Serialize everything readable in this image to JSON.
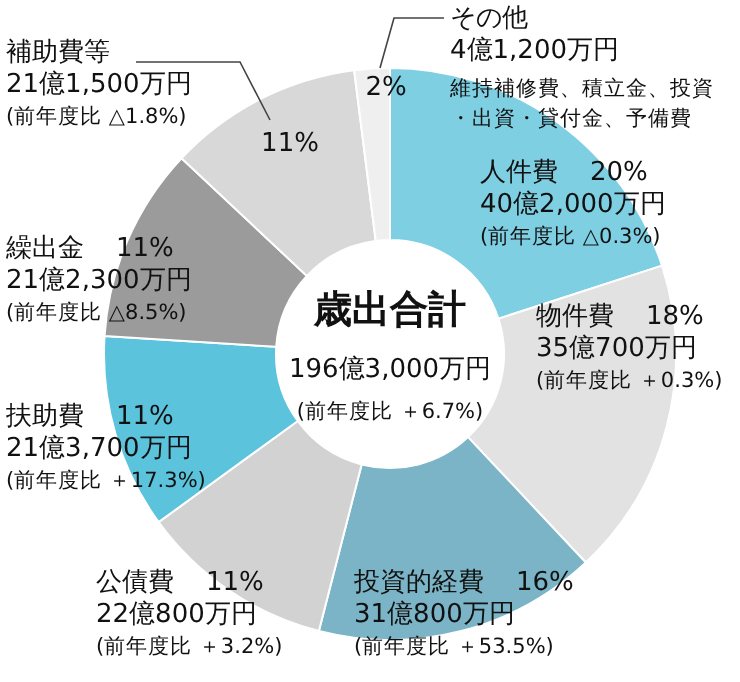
{
  "chart_data": {
    "type": "donut",
    "title": "歳出合計",
    "subtitle": "196億3,000万円",
    "categories": [
      "人件費",
      "物件費",
      "投資的経費",
      "公債費",
      "扶助費",
      "繰出金",
      "補助費等",
      "その他"
    ],
    "values": [
      20,
      18,
      16,
      11,
      11,
      11,
      11,
      2
    ],
    "value_labels": [
      "20%",
      "18%",
      "16%",
      "11%",
      "11%",
      "11%",
      "11%",
      "2%"
    ],
    "colors": [
      "#7fcfe3",
      "#e2e2e2",
      "#7ab4c6",
      "#d2d2d2",
      "#5cc3dd",
      "#9b9b9b",
      "#d8d8d8",
      "#efefef"
    ],
    "annotations": [
      "40億2,000万円",
      "(前年度比 △0.3%)",
      "35億700万円",
      "(前年度比 ＋0.3%)",
      "31億800万円",
      "(前年度比 ＋53.5%)",
      "22億800万円",
      "(前年度比 ＋3.2%)",
      "21億3,700万円",
      "(前年度比 ＋17.3%)",
      "21億2,300万円",
      "(前年度比 △8.5%)",
      "21億1,500万円",
      "(前年度比 △1.8%)",
      "4億1,200万円",
      "維持補修費、積立金、投資・出資・貸付金、予備費",
      "(前年度比 ＋6.7%)"
    ],
    "legend": false
  }
}
